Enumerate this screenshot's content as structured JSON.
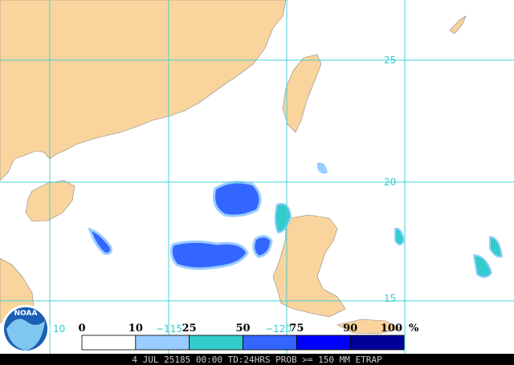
{
  "map": {
    "lat_labels": [
      "25",
      "20",
      "15"
    ],
    "lon_labels": [
      "10",
      "−115",
      "−120"
    ]
  },
  "legend": {
    "labels": [
      "0",
      "10",
      "25",
      "50",
      "75",
      "90",
      "100"
    ],
    "unit": "%",
    "colors": [
      "#ffffff",
      "#99ccff",
      "#33cccc",
      "#3366ff",
      "#0000ff",
      "#000099"
    ]
  },
  "logo": {
    "text": "NOAA"
  },
  "footer": {
    "text": "4 JUL 25185 00:00 TD:24HRS PROB >= 150 MM ETRAP"
  }
}
